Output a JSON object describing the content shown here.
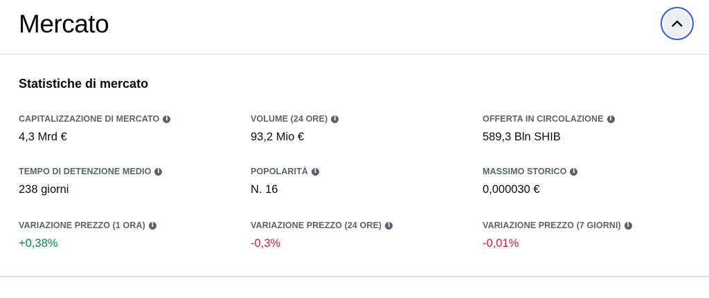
{
  "header": {
    "title": "Mercato",
    "collapse_icon": "chevron-up-icon"
  },
  "section_title": "Statistiche di mercato",
  "colors": {
    "positive": "#098551",
    "negative": "#cf202f",
    "accent": "#2f5cf5"
  },
  "stats": [
    {
      "label": "CAPITALIZZAZIONE DI MERCATO",
      "value": "4,3 Mrd €",
      "tone": ""
    },
    {
      "label": "VOLUME (24 ORE)",
      "value": "93,2 Mio €",
      "tone": ""
    },
    {
      "label": "OFFERTA IN CIRCOLAZIONE",
      "value": "589,3 Bln SHIB",
      "tone": ""
    },
    {
      "label": "TEMPO DI DETENZIONE MEDIO",
      "value": "238 giorni",
      "tone": ""
    },
    {
      "label": "POPOLARITÀ",
      "value": "N. 16",
      "tone": ""
    },
    {
      "label": "MASSIMO STORICO",
      "value": "0,000030 €",
      "tone": ""
    },
    {
      "label": "VARIAZIONE PREZZO (1 ORA)",
      "value": "+0,38%",
      "tone": "pos"
    },
    {
      "label": "VARIAZIONE PREZZO (24 ORE)",
      "value": "-0,3%",
      "tone": "neg"
    },
    {
      "label": "VARIAZIONE PREZZO (7 GIORNI)",
      "value": "-0,01%",
      "tone": "neg"
    }
  ]
}
